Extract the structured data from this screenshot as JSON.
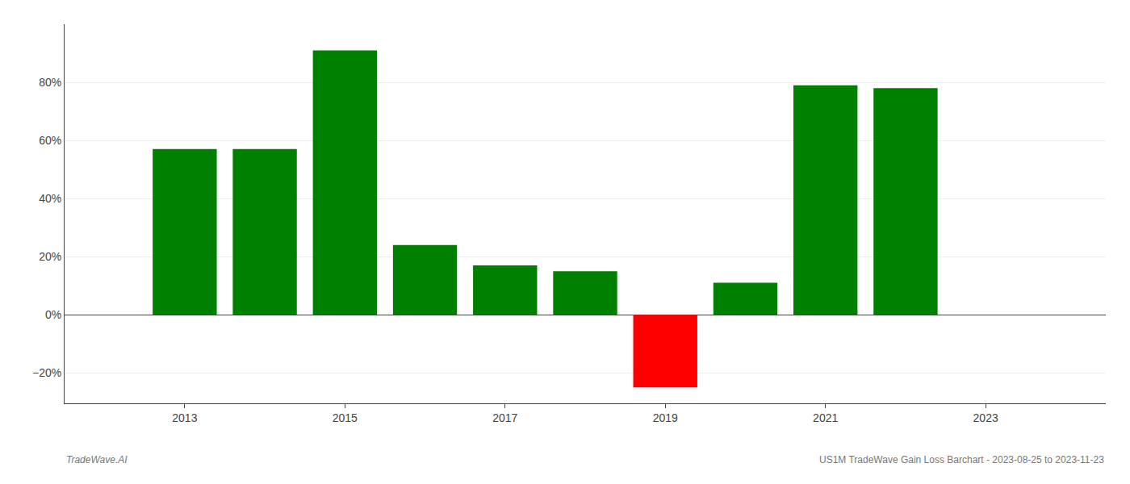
{
  "chart_data": {
    "type": "bar",
    "x": [
      2013,
      2014,
      2015,
      2016,
      2017,
      2018,
      2019,
      2020,
      2021,
      2022
    ],
    "values": [
      0.57,
      0.57,
      0.91,
      0.24,
      0.17,
      0.15,
      -0.25,
      0.11,
      0.79,
      0.78
    ],
    "colors": [
      "#008000",
      "#008000",
      "#008000",
      "#008000",
      "#008000",
      "#008000",
      "#ff0000",
      "#008000",
      "#008000",
      "#008000"
    ],
    "xlim": [
      2011.5,
      2024.5
    ],
    "xticks": [
      2013,
      2015,
      2017,
      2019,
      2021,
      2023
    ],
    "ylim": [
      -0.305,
      1.0
    ],
    "yticks": [
      {
        "value": -0.2,
        "label": "−20%"
      },
      {
        "value": 0.0,
        "label": "0%"
      },
      {
        "value": 0.2,
        "label": "20%"
      },
      {
        "value": 0.4,
        "label": "40%"
      },
      {
        "value": 0.6,
        "label": "60%"
      },
      {
        "value": 0.8,
        "label": "80%"
      }
    ],
    "grid": true,
    "annotations": [
      "TradeWave.AI",
      "US1M TradeWave Gain Loss Barchart - 2023-08-25 to 2023-11-23"
    ]
  }
}
